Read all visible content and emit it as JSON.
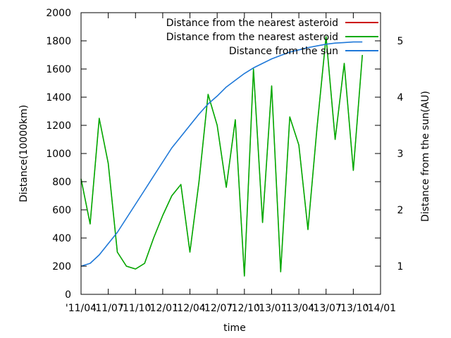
{
  "chart_data": {
    "type": "line",
    "title": "",
    "xlabel": "time",
    "ylabel": "Distance(10000km)",
    "y2label": "Distance from the sun(AU)",
    "x_ticks": [
      "'11/04",
      "'11/07",
      "'11/10",
      "'12/01",
      "'12/04",
      "'12/07",
      "'12/10",
      "'13/01",
      "'13/04",
      "'13/07",
      "'13/10",
      "'14/01"
    ],
    "x_range": [
      "2011-04",
      "2014-01"
    ],
    "ylim": [
      0,
      2000
    ],
    "y_ticks": [
      0,
      200,
      400,
      600,
      800,
      1000,
      1200,
      1400,
      1600,
      1800,
      2000
    ],
    "y2lim": [
      0.5,
      5.5
    ],
    "y2_ticks": [
      1,
      2,
      3,
      4,
      5
    ],
    "grid": false,
    "legend_position": "top-right",
    "series": [
      {
        "name": "Distance from the nearest asteroid",
        "color": "#cc0000",
        "axis": "left",
        "x": [
          "2011-04",
          "2011-05",
          "2011-06",
          "2011-07",
          "2011-08",
          "2011-09",
          "2011-10",
          "2011-11",
          "2011-12",
          "2012-01",
          "2012-02",
          "2012-03",
          "2012-04",
          "2012-05",
          "2012-06",
          "2012-07",
          "2012-08",
          "2012-09",
          "2012-10",
          "2012-11",
          "2012-12",
          "2013-01",
          "2013-02",
          "2013-03",
          "2013-04",
          "2013-05",
          "2013-06",
          "2013-07",
          "2013-08",
          "2013-09",
          "2013-10",
          "2013-11"
        ],
        "values": [
          820,
          500,
          1250,
          930,
          300,
          200,
          180,
          220,
          400,
          560,
          700,
          780,
          300,
          800,
          1420,
          1200,
          760,
          1240,
          130,
          1600,
          510,
          1480,
          160,
          1260,
          1060,
          460,
          1180,
          1830,
          1100,
          1640,
          880,
          1700
        ]
      },
      {
        "name": "Distance from the nearest asteroid",
        "color": "#00aa00",
        "axis": "left",
        "x": [
          "2011-04",
          "2011-05",
          "2011-06",
          "2011-07",
          "2011-08",
          "2011-09",
          "2011-10",
          "2011-11",
          "2011-12",
          "2012-01",
          "2012-02",
          "2012-03",
          "2012-04",
          "2012-05",
          "2012-06",
          "2012-07",
          "2012-08",
          "2012-09",
          "2012-10",
          "2012-11",
          "2012-12",
          "2013-01",
          "2013-02",
          "2013-03",
          "2013-04",
          "2013-05",
          "2013-06",
          "2013-07",
          "2013-08",
          "2013-09",
          "2013-10",
          "2013-11"
        ],
        "values": [
          820,
          500,
          1250,
          930,
          300,
          200,
          180,
          220,
          400,
          560,
          700,
          780,
          300,
          800,
          1420,
          1200,
          760,
          1240,
          130,
          1600,
          510,
          1480,
          160,
          1260,
          1060,
          460,
          1180,
          1830,
          1100,
          1640,
          880,
          1700
        ]
      },
      {
        "name": "Distance from the sun",
        "color": "#1e78d8",
        "axis": "right",
        "x": [
          "2011-04",
          "2011-05",
          "2011-06",
          "2011-07",
          "2011-08",
          "2011-09",
          "2011-10",
          "2011-11",
          "2011-12",
          "2012-01",
          "2012-02",
          "2012-03",
          "2012-04",
          "2012-05",
          "2012-06",
          "2012-07",
          "2012-08",
          "2012-09",
          "2012-10",
          "2012-11",
          "2012-12",
          "2013-01",
          "2013-02",
          "2013-03",
          "2013-04",
          "2013-05",
          "2013-06",
          "2013-07",
          "2013-08",
          "2013-09",
          "2013-10",
          "2013-11"
        ],
        "values": [
          1.0,
          1.05,
          1.2,
          1.4,
          1.6,
          1.85,
          2.1,
          2.35,
          2.6,
          2.85,
          3.1,
          3.3,
          3.5,
          3.7,
          3.88,
          4.02,
          4.18,
          4.3,
          4.42,
          4.52,
          4.6,
          4.68,
          4.74,
          4.8,
          4.84,
          4.88,
          4.91,
          4.94,
          4.96,
          4.97,
          4.98,
          4.98
        ]
      }
    ]
  }
}
